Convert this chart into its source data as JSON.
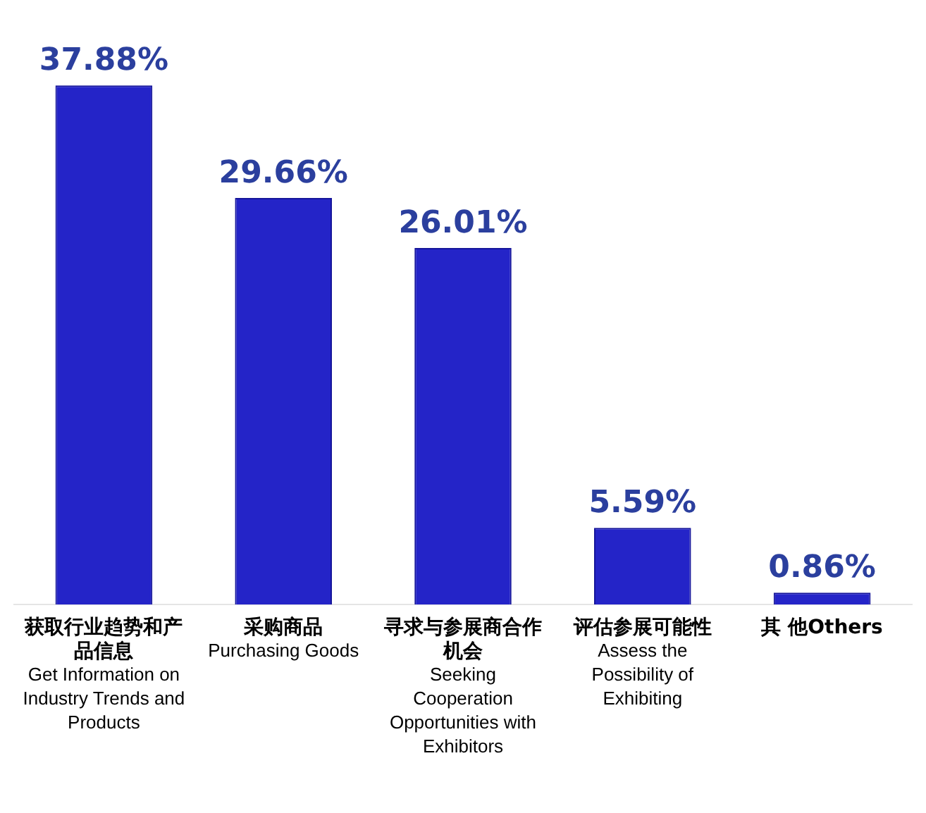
{
  "chart_data": {
    "type": "bar",
    "categories": [
      "获取行业趋势和产品信息\nGet Information on Industry Trends and Products",
      "采购商品\nPurchasing Goods",
      "寻求与参展商合作机会\nSeeking Cooperation Opportunities with Exhibitors",
      "评估参展可能性\nAssess the Possibility of Exhibiting",
      "其 他Others"
    ],
    "values": [
      37.88,
      29.66,
      26.01,
      5.59,
      0.86
    ],
    "value_labels": [
      "37.88%",
      "29.66%",
      "26.01%",
      "5.59%",
      "0.86%"
    ],
    "color": "#2424c8",
    "relative": false,
    "grid": false,
    "legend": false
  }
}
